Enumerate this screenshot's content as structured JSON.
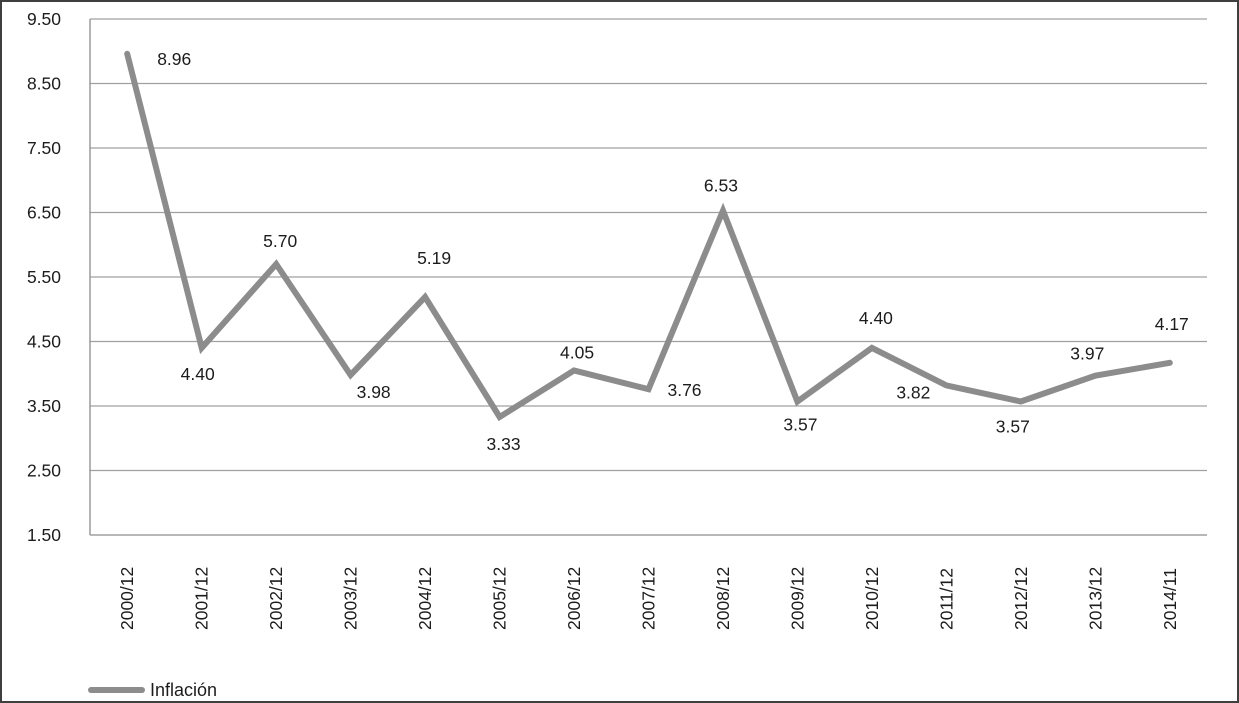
{
  "window": {
    "background": "#ffffff",
    "border_color": "#3f3f3f"
  },
  "chart_data": {
    "type": "line",
    "title": "",
    "xlabel": "",
    "ylabel": "",
    "categories": [
      "2000/12",
      "2001/12",
      "2002/12",
      "2003/12",
      "2004/12",
      "2005/12",
      "2006/12",
      "2007/12",
      "2008/12",
      "2009/12",
      "2010/12",
      "2011/12",
      "2012/12",
      "2013/12",
      "2014/11"
    ],
    "series": [
      {
        "name": "Inflación",
        "values": [
          8.96,
          4.4,
          5.7,
          3.98,
          5.19,
          3.33,
          4.05,
          3.76,
          6.53,
          3.57,
          4.4,
          3.82,
          3.57,
          3.97,
          4.17
        ],
        "point_labels": [
          "8.96",
          "4.40",
          "5.70",
          "3.98",
          "5.19",
          "3.33",
          "4.05",
          "3.76",
          "6.53",
          "3.57",
          "4.40",
          "3.82",
          "3.57",
          "3.97",
          "4.17"
        ]
      }
    ],
    "y_axis": {
      "min": 1.5,
      "max": 9.5,
      "step": 1.0,
      "tick_labels": [
        "9.50",
        "8.50",
        "7.50",
        "6.50",
        "5.50",
        "4.50",
        "3.50",
        "2.50",
        "1.50"
      ]
    },
    "x_axis": {
      "tick_label_rotation_deg": -90
    },
    "grid": true,
    "legend": {
      "label": "Inflación",
      "position": "bottom-left"
    },
    "colors": {
      "line": "#8c8c8c",
      "gridline": "#a0a0a0",
      "axis": "#8c8c8c",
      "text": "#1c1c1c"
    }
  }
}
